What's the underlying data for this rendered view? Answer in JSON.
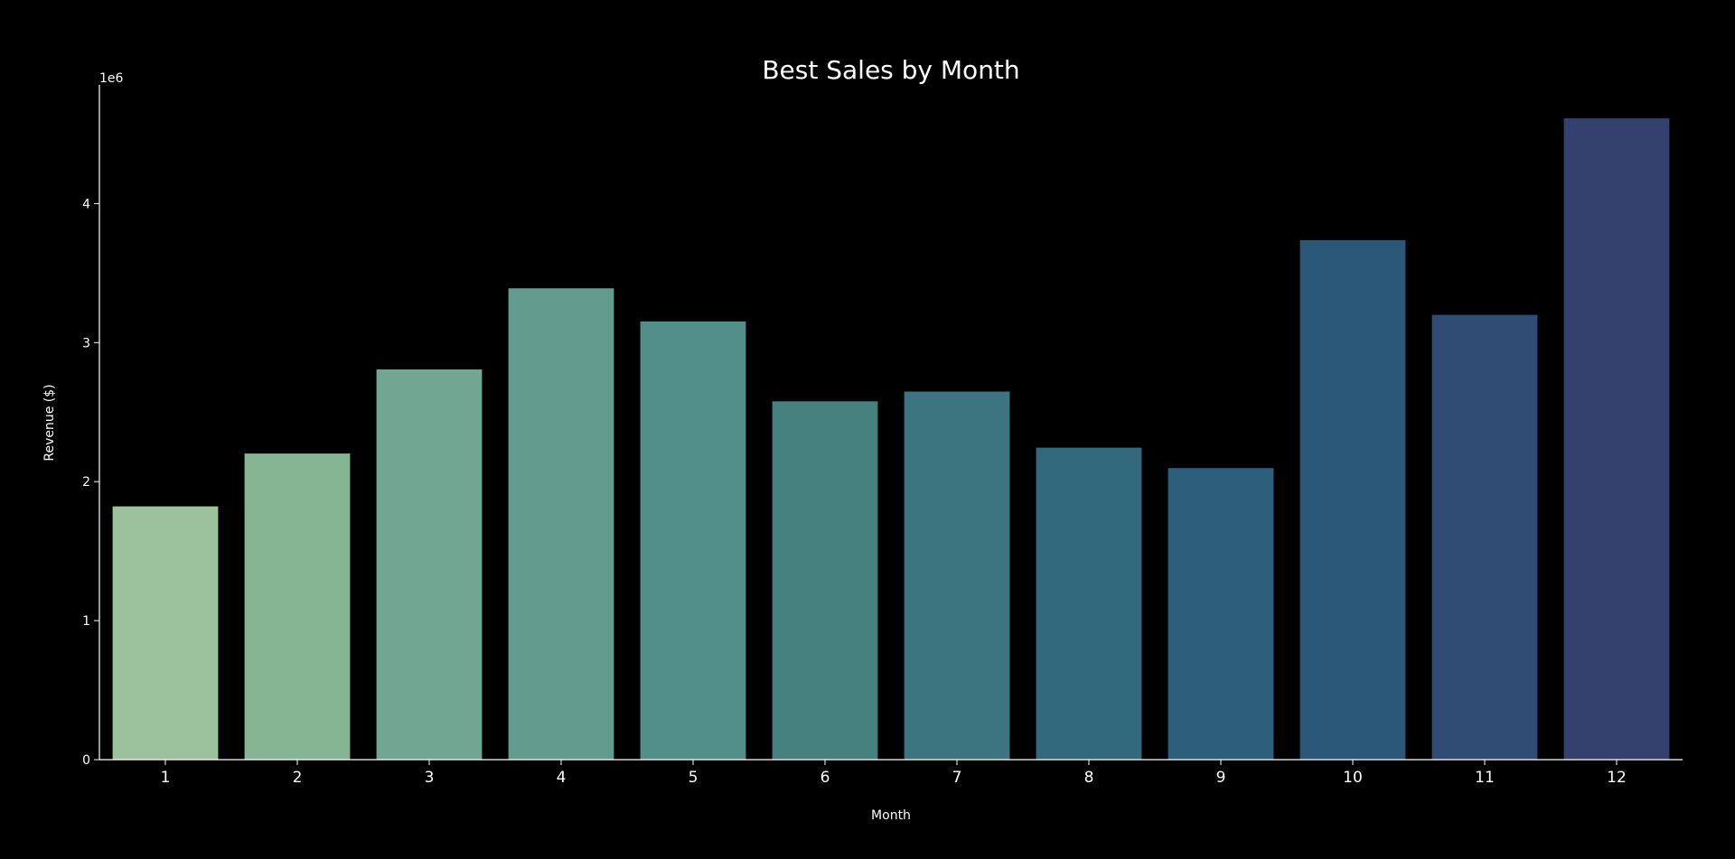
{
  "chart_data": {
    "type": "bar",
    "title": "Best Sales by Month",
    "xlabel": "Month",
    "ylabel": "Revenue ($)",
    "y_offset_label": "1e6",
    "categories": [
      "1",
      "2",
      "3",
      "4",
      "5",
      "6",
      "7",
      "8",
      "9",
      "10",
      "11",
      "12"
    ],
    "values": [
      1822257,
      2202022,
      2807100,
      3390670,
      3152607,
      2577802,
      2647776,
      2244468,
      2097560,
      3736727,
      3199603,
      4613443
    ],
    "bar_colors": [
      "#9bc29c",
      "#86b594",
      "#70a692",
      "#629c8f",
      "#528f88",
      "#46817f",
      "#3c7580",
      "#32697c",
      "#2b5f7c",
      "#2b5878",
      "#304c74",
      "#34416e"
    ],
    "yticks": [
      0,
      1,
      2,
      3,
      4
    ],
    "ylim": [
      0,
      4800000
    ],
    "grid": false,
    "legend": "none",
    "colors": {
      "background": "#000000",
      "axis": "#ffffff",
      "text": "#ffffff"
    }
  }
}
